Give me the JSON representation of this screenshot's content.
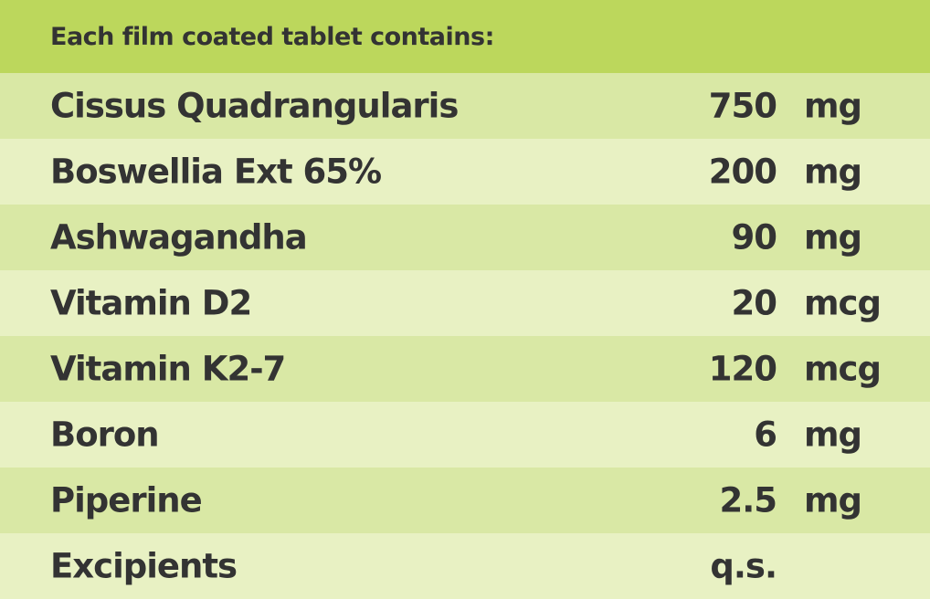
{
  "header": {
    "title": "Each film coated tablet contains:"
  },
  "rows": [
    {
      "name": "Cissus Quadrangularis",
      "value": "750",
      "unit": "mg"
    },
    {
      "name": "Boswellia Ext 65%",
      "value": "200",
      "unit": "mg"
    },
    {
      "name": "Ashwagandha",
      "value": "90",
      "unit": "mg"
    },
    {
      "name": "Vitamin D2",
      "value": "20",
      "unit": "mcg"
    },
    {
      "name": "Vitamin K2-7",
      "value": "120",
      "unit": "mcg"
    },
    {
      "name": "Boron",
      "value": "6",
      "unit": "mg"
    },
    {
      "name": "Piperine",
      "value": "2.5",
      "unit": "mg"
    },
    {
      "name": "Excipients",
      "value": "q.s.",
      "unit": ""
    }
  ],
  "colors": {
    "header": "#bcd75c",
    "row_dark": "#d9e8a5",
    "row_light": "#e8f1c3",
    "text": "#333333"
  }
}
